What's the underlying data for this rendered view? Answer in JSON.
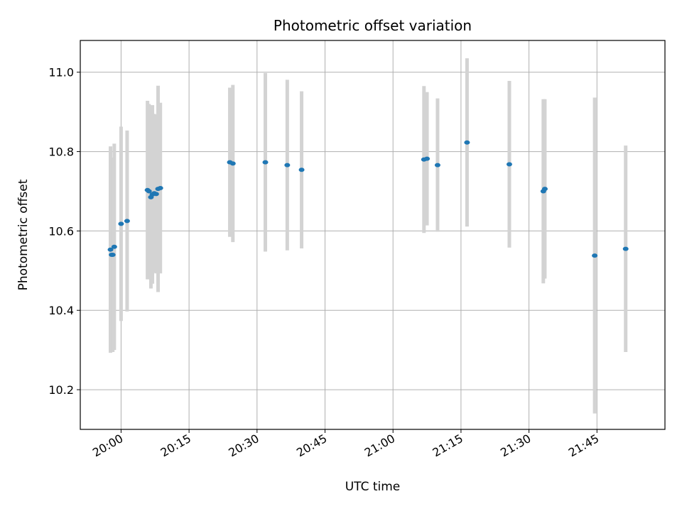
{
  "chart_data": {
    "type": "scatter",
    "title": "Photometric offset variation",
    "xlabel": "UTC time",
    "ylabel": "Photometric offset",
    "xlim": [
      "19:51",
      "22:00"
    ],
    "ylim": [
      10.1,
      11.08
    ],
    "x_ticks": [
      "20:00",
      "20:15",
      "20:30",
      "20:45",
      "21:00",
      "21:15",
      "21:30",
      "21:45"
    ],
    "y_ticks": [
      10.2,
      10.4,
      10.6,
      10.8,
      11.0
    ],
    "grid": true,
    "colors": {
      "points": "#1f77b4",
      "errorbars": "#d3d3d3",
      "grid": "#b0b0b0"
    },
    "points": [
      {
        "time": "19:57:40",
        "y": 10.553,
        "yerr": 0.26
      },
      {
        "time": "19:57:55",
        "y": 10.54,
        "yerr": 0.245
      },
      {
        "time": "19:58:10",
        "y": 10.54,
        "yerr": 0.245
      },
      {
        "time": "19:58:30",
        "y": 10.56,
        "yerr": 0.26
      },
      {
        "time": "20:00:00",
        "y": 10.618,
        "yerr": 0.245
      },
      {
        "time": "20:01:20",
        "y": 10.625,
        "yerr": 0.228
      },
      {
        "time": "20:05:50",
        "y": 10.703,
        "yerr": 0.225
      },
      {
        "time": "20:06:10",
        "y": 10.7,
        "yerr": 0.22
      },
      {
        "time": "20:06:35",
        "y": 10.685,
        "yerr": 0.23
      },
      {
        "time": "20:06:55",
        "y": 10.692,
        "yerr": 0.225
      },
      {
        "time": "20:07:20",
        "y": 10.695,
        "yerr": 0.2
      },
      {
        "time": "20:07:45",
        "y": 10.693,
        "yerr": 0.2
      },
      {
        "time": "20:08:10",
        "y": 10.706,
        "yerr": 0.26
      },
      {
        "time": "20:08:40",
        "y": 10.708,
        "yerr": 0.215
      },
      {
        "time": "20:24:00",
        "y": 10.773,
        "yerr": 0.188
      },
      {
        "time": "20:24:40",
        "y": 10.77,
        "yerr": 0.198
      },
      {
        "time": "20:31:50",
        "y": 10.773,
        "yerr": 0.225
      },
      {
        "time": "20:36:40",
        "y": 10.766,
        "yerr": 0.215
      },
      {
        "time": "20:39:50",
        "y": 10.754,
        "yerr": 0.198
      },
      {
        "time": "21:06:50",
        "y": 10.78,
        "yerr": 0.185
      },
      {
        "time": "21:07:30",
        "y": 10.782,
        "yerr": 0.168
      },
      {
        "time": "21:09:50",
        "y": 10.766,
        "yerr": 0.168
      },
      {
        "time": "21:16:20",
        "y": 10.823,
        "yerr": 0.212
      },
      {
        "time": "21:25:40",
        "y": 10.768,
        "yerr": 0.21
      },
      {
        "time": "21:33:10",
        "y": 10.7,
        "yerr": 0.232
      },
      {
        "time": "21:33:30",
        "y": 10.706,
        "yerr": 0.226
      },
      {
        "time": "21:44:30",
        "y": 10.538,
        "yerr": 0.398
      },
      {
        "time": "21:51:20",
        "y": 10.555,
        "yerr": 0.26
      }
    ]
  }
}
